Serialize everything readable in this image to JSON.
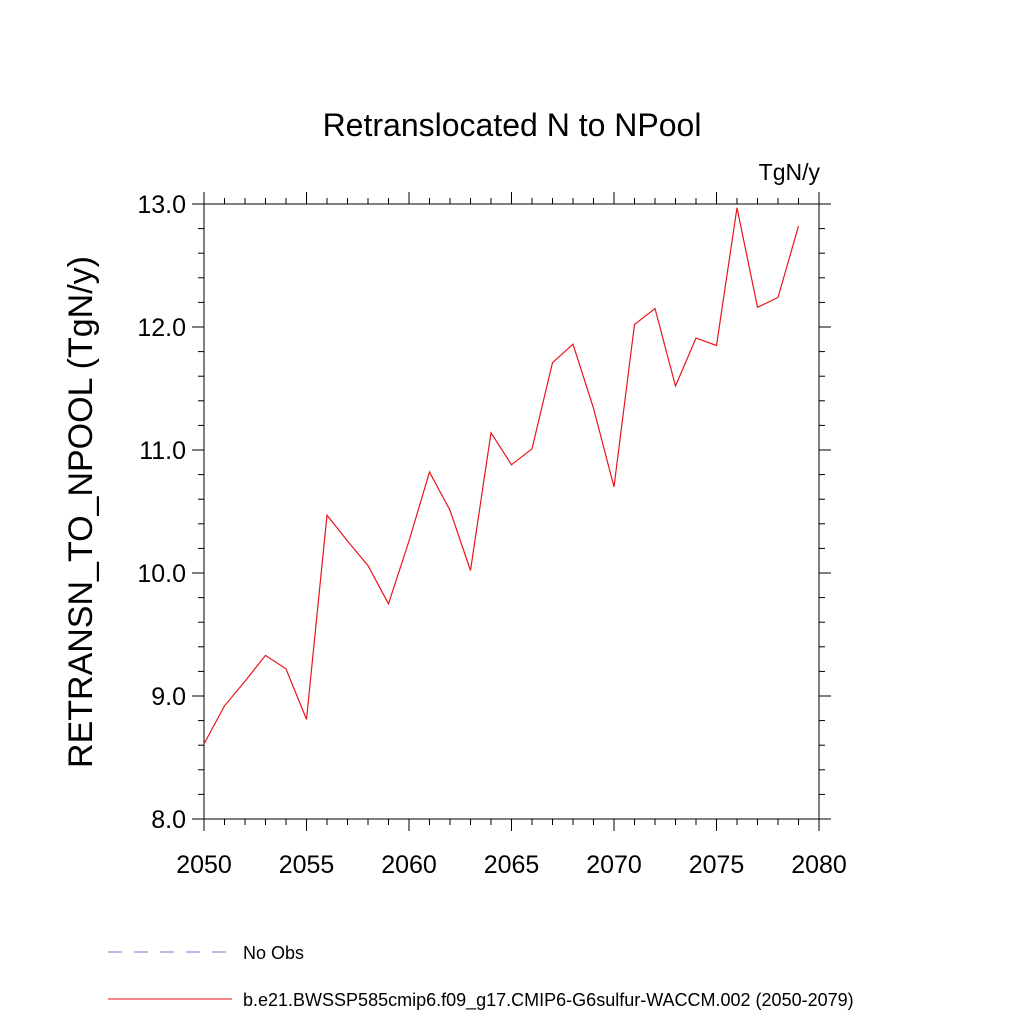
{
  "chart_data": {
    "type": "line",
    "title": "Retranslocated N to NPool",
    "units": "TgN/y",
    "xlabel": "",
    "ylabel": "RETRANSN_TO_NPOOL  (TgN/y)",
    "xlim": [
      2050,
      2080
    ],
    "ylim": [
      8.0,
      13.0
    ],
    "x_ticks": [
      "2050",
      "2055",
      "2060",
      "2065",
      "2070",
      "2075",
      "2080"
    ],
    "y_ticks": [
      "8.0",
      "9.0",
      "10.0",
      "11.0",
      "12.0",
      "13.0"
    ],
    "grid": false,
    "legend_position": "bottom",
    "series": [
      {
        "name": "b.e21.BWSSP585cmip6.f09_g17.CMIP6-G6sulfur-WACCM.002 (2050-2079)",
        "color": "#e8161b",
        "style": "solid",
        "x": [
          2050,
          2051,
          2052,
          2053,
          2054,
          2055,
          2056,
          2057,
          2058,
          2059,
          2060,
          2061,
          2062,
          2063,
          2064,
          2065,
          2066,
          2067,
          2068,
          2069,
          2070,
          2071,
          2072,
          2073,
          2074,
          2075,
          2076,
          2077,
          2078,
          2079
        ],
        "values": [
          8.61,
          8.92,
          9.12,
          9.33,
          9.22,
          8.81,
          10.47,
          10.26,
          10.06,
          9.75,
          10.26,
          10.82,
          10.51,
          10.02,
          11.14,
          10.88,
          11.01,
          11.71,
          11.86,
          11.34,
          10.7,
          12.02,
          12.15,
          11.52,
          11.91,
          11.85,
          12.97,
          12.16,
          12.24,
          12.82
        ]
      }
    ],
    "legend": [
      {
        "label": "No Obs",
        "color": "#7b6fd6",
        "style": "dashed"
      },
      {
        "label": "b.e21.BWSSP585cmip6.f09_g17.CMIP6-G6sulfur-WACCM.002 (2050-2079)",
        "color": "#e8161b",
        "style": "solid"
      }
    ]
  }
}
